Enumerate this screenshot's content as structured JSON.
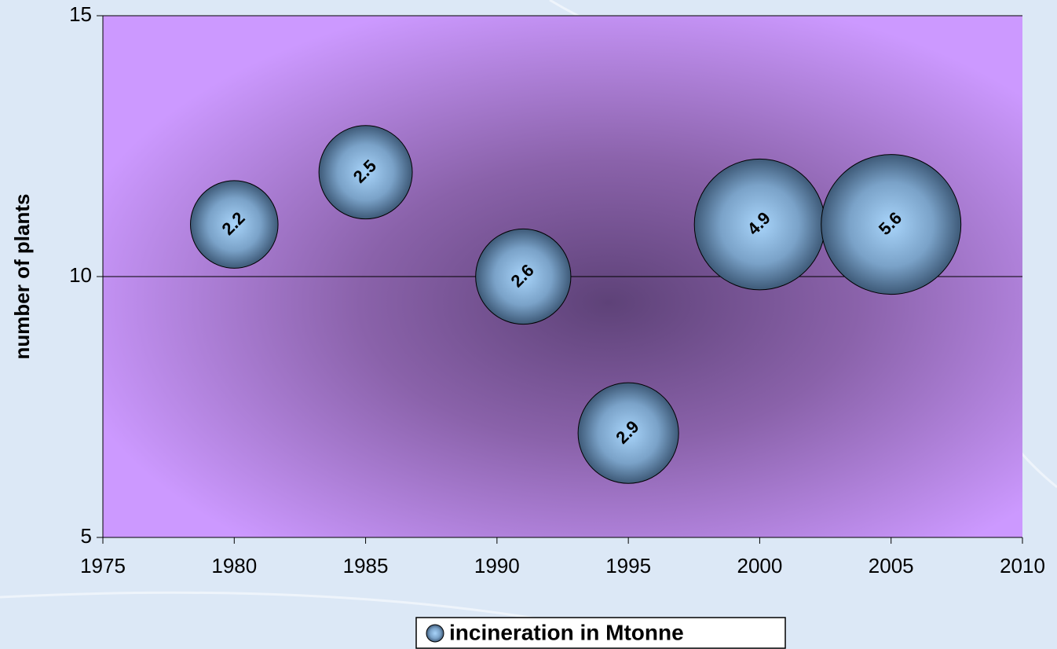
{
  "chart_data": {
    "type": "bubble",
    "y_label": "number of plants",
    "x": [
      1980,
      1985,
      1991,
      1995,
      2000,
      2005
    ],
    "series": [
      {
        "name": "incineration in Mtonne",
        "color": "#8fb8e0",
        "values": [
          11,
          12,
          10,
          7,
          11,
          11
        ],
        "sizes": [
          2.2,
          2.5,
          2.6,
          2.9,
          4.9,
          5.6
        ]
      }
    ],
    "xlim": [
      1975,
      2010
    ],
    "xticks": [
      1975,
      1980,
      1985,
      1990,
      1995,
      2000,
      2005,
      2010
    ],
    "ylim": [
      5,
      15
    ],
    "yticks": [
      5,
      10,
      15
    ],
    "grid": true,
    "legend": "bottom"
  }
}
